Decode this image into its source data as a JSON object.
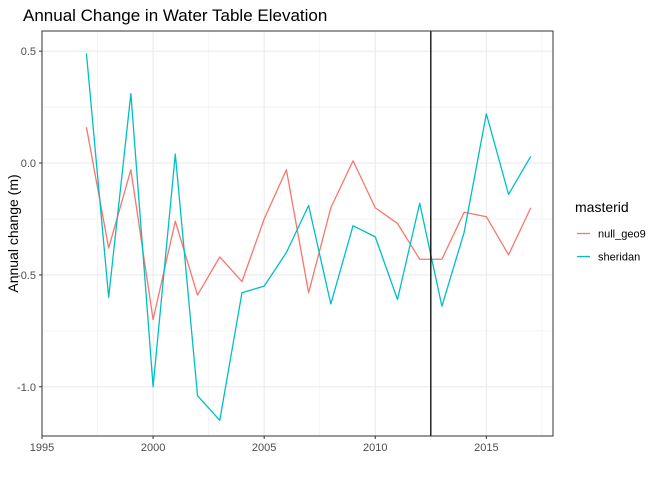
{
  "chart_data": {
    "type": "line",
    "title": "Annual Change in Water Table Elevation",
    "xlabel": "",
    "ylabel": "Annual change (m)",
    "xlim": [
      1995,
      2018
    ],
    "ylim": [
      -1.22,
      0.59
    ],
    "x_ticks": [
      1995,
      2000,
      2005,
      2010,
      2015
    ],
    "y_ticks": [
      0.5,
      0.0,
      -0.5,
      -1.0
    ],
    "y_tick_labels": [
      "0.5",
      "0.0",
      "-0.5",
      "-1.0"
    ],
    "grid": true,
    "legend": {
      "title": "masterid",
      "position": "right"
    },
    "vline": 2012.5,
    "series": [
      {
        "name": "null_geo9",
        "color": "#F8766D",
        "x": [
          1997,
          1998,
          1999,
          2000,
          2001,
          2002,
          2003,
          2004,
          2005,
          2006,
          2007,
          2008,
          2009,
          2010,
          2011,
          2012,
          2013,
          2014,
          2015,
          2016,
          2017
        ],
        "values": [
          0.16,
          -0.38,
          -0.03,
          -0.7,
          -0.26,
          -0.59,
          -0.42,
          -0.53,
          -0.25,
          -0.03,
          -0.58,
          -0.2,
          0.01,
          -0.2,
          -0.27,
          -0.43,
          -0.43,
          -0.22,
          -0.24,
          -0.41,
          -0.2
        ]
      },
      {
        "name": "sheridan",
        "color": "#00BFC4",
        "x": [
          1997,
          1998,
          1999,
          2000,
          2001,
          2002,
          2003,
          2004,
          2005,
          2006,
          2007,
          2008,
          2009,
          2010,
          2011,
          2012,
          2013,
          2014,
          2015,
          2016,
          2017
        ],
        "values": [
          0.49,
          -0.6,
          0.31,
          -1.0,
          0.04,
          -1.04,
          -1.15,
          -0.58,
          -0.55,
          -0.4,
          -0.19,
          -0.63,
          -0.28,
          -0.33,
          -0.61,
          -0.18,
          -0.64,
          -0.31,
          0.22,
          -0.14,
          0.03
        ]
      }
    ]
  }
}
